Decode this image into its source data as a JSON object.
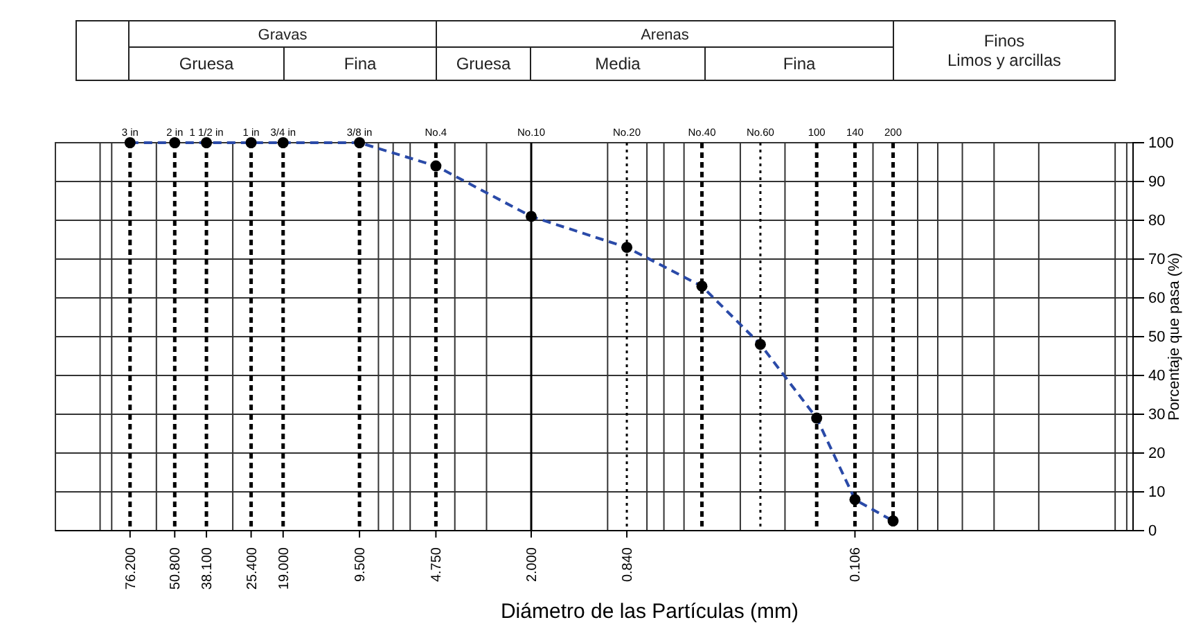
{
  "chart_data": {
    "type": "line",
    "xlabel": "Diámetro de las Partículas  (mm)",
    "ylabel": "Porcentaje que pasa (%)",
    "annotations": [
      "Gravas",
      "Gruesa",
      "Fina",
      "Arenas",
      "Gruesa",
      "Media",
      "Fina",
      "Finos\nLimos y arcillas",
      {
        "text": "100",
        "x": 0.15,
        "y": 100
      },
      {
        "text": "140",
        "x": 0.106,
        "y": 100
      },
      {
        "text": "200",
        "x": 0.075,
        "y": 100
      }
    ],
    "log": "x",
    "xlim": [
      150,
      0.0085
    ],
    "ylim": [
      0,
      100
    ],
    "xticks": [
      {
        "value": 76.2,
        "label": "76.200"
      },
      {
        "value": 50.8,
        "label": "50.800"
      },
      {
        "value": 38.1,
        "label": "38.100"
      },
      {
        "value": 25.4,
        "label": "25.400"
      },
      {
        "value": 19,
        "label": "19.000"
      },
      {
        "value": 9.5,
        "label": "9.500"
      },
      {
        "value": 4.75,
        "label": "4.750"
      },
      {
        "value": 2,
        "label": "2.000"
      },
      {
        "value": 0.84,
        "label": "0.840"
      },
      {
        "value": 0.106,
        "label": "0.106"
      }
    ],
    "yticks": [
      0,
      10,
      20,
      30,
      40,
      50,
      60,
      70,
      80,
      90,
      100
    ],
    "grid": true,
    "line_style": "dashed",
    "ref_lines": [
      {
        "axis": "x",
        "value": 76.2,
        "label": "3 in",
        "line_style": "dashed"
      },
      {
        "axis": "x",
        "value": 50.8,
        "label": "2 in",
        "line_style": "dashed"
      },
      {
        "axis": "x",
        "value": 38.1,
        "label": "1 1/2 in",
        "line_style": "dashed"
      },
      {
        "axis": "x",
        "value": 25.4,
        "label": "1 in",
        "line_style": "dashed"
      },
      {
        "axis": "x",
        "value": 19,
        "label": "3/4 in",
        "line_style": "dashed"
      },
      {
        "axis": "x",
        "value": 9.5,
        "label": "3/8 in",
        "line_style": "dashed"
      },
      {
        "axis": "x",
        "value": 4.75,
        "label": "No.4",
        "line_style": "dashed"
      },
      {
        "axis": "x",
        "value": 0.84,
        "label": "No.20",
        "line_style": "dotted"
      },
      {
        "axis": "x",
        "value": 0.425,
        "label": "No.40",
        "line_style": "dashed"
      },
      {
        "axis": "x",
        "value": 0.25,
        "label": "No.60",
        "line_style": "dotted"
      },
      {
        "axis": "x",
        "value": 0.15,
        "line_style": "dashed"
      },
      {
        "axis": "x",
        "value": 0.106,
        "line_style": "dashed"
      },
      {
        "axis": "x",
        "value": 0.075,
        "line_style": "dashed"
      },
      {
        "axis": "x",
        "value": 2,
        "label": "No.10",
        "line_style": "solid"
      }
    ],
    "x": [
      76.2,
      50.8,
      38.1,
      25.4,
      19,
      9.5,
      4.75,
      2,
      0.84,
      0.425,
      0.25,
      0.15,
      0.106,
      0.075
    ],
    "series": [
      {
        "color": "#2a4aa8",
        "values": [
          100,
          100,
          100,
          100,
          100,
          100,
          94,
          81,
          73,
          63,
          48,
          29,
          8,
          2.5
        ]
      },
      {
        "type": "scatter",
        "marker": "circle",
        "color": "#000000",
        "values": [
          100,
          100,
          100,
          100,
          100,
          100,
          94,
          81,
          73,
          63,
          48,
          29,
          8,
          2.5
        ]
      }
    ]
  }
}
